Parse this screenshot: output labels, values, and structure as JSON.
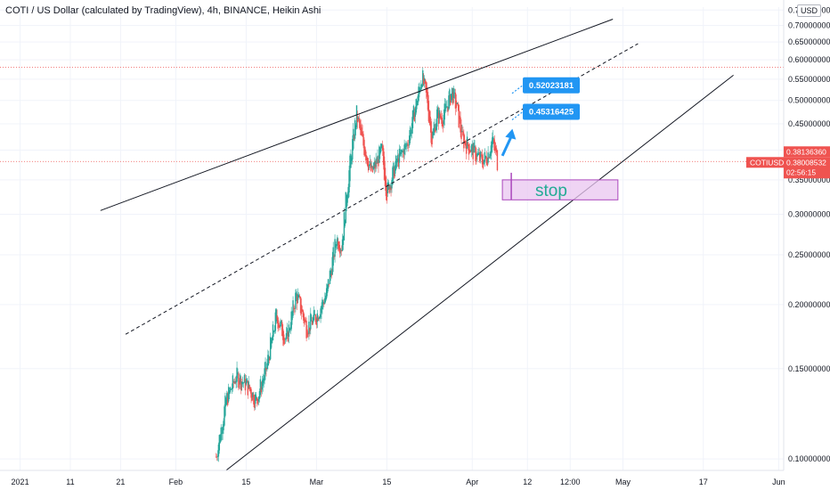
{
  "header": {
    "title": "COTI / US Dollar (calculated by TradingView), 4h, BINANCE, Heikin Ashi",
    "currency_button": "USD"
  },
  "colors": {
    "up": "#26a69a",
    "down": "#ef5350",
    "price_line": "#ef5350",
    "horizontal_level": "#ef5350",
    "grid": "#f0f3fa",
    "trendline": "#131722",
    "callout": "#2196f3",
    "stop_box_fill": "#e9c6f0",
    "stop_box_border": "#ab47bc",
    "stop_text": "#22ab94"
  },
  "chart_data": {
    "type": "candlestick",
    "title": "COTI / US Dollar (calculated by TradingView), 4h, BINANCE, Heikin Ashi",
    "xlabel": "",
    "ylabel": "",
    "y_scale": "log",
    "ylim": [
      0.095,
      0.76
    ],
    "y_ticks": [
      0.1,
      0.15,
      0.2,
      0.25,
      0.3,
      0.35,
      0.4,
      0.45,
      0.5,
      0.55,
      0.6,
      0.65,
      0.7,
      0.75
    ],
    "y_tick_labels": [
      "0.10000000",
      "0.15000000",
      "0.20000000",
      "0.25000000",
      "0.30000000",
      "0.35000000",
      "0.40000000",
      "0.45000000",
      "0.50000000",
      "0.55000000",
      "0.60000000",
      "0.65000000",
      "0.70000000",
      "0.75000000"
    ],
    "x_range": [
      "2020-12-28",
      "2021-06-02"
    ],
    "x_ticks": [
      {
        "date": "2021-01-01",
        "label": "2021"
      },
      {
        "date": "2021-01-11",
        "label": "11"
      },
      {
        "date": "2021-01-21",
        "label": "21"
      },
      {
        "date": "2021-02-01",
        "label": "Feb"
      },
      {
        "date": "2021-02-15",
        "label": "15"
      },
      {
        "date": "2021-03-01",
        "label": "Mar"
      },
      {
        "date": "2021-03-15",
        "label": "15"
      },
      {
        "date": "2021-04-01",
        "label": "Apr"
      },
      {
        "date": "2021-04-12",
        "label": "12"
      },
      {
        "date": "2021-04-20 12:00",
        "label": "12:00"
      },
      {
        "date": "2021-05-01",
        "label": "May"
      },
      {
        "date": "2021-05-17",
        "label": "17"
      },
      {
        "date": "2021-06-01",
        "label": "Jun"
      }
    ],
    "price_path": [
      [
        "2021-02-09",
        0.101
      ],
      [
        "2021-02-11",
        0.13
      ],
      [
        "2021-02-13",
        0.145
      ],
      [
        "2021-02-15",
        0.14
      ],
      [
        "2021-02-17",
        0.13
      ],
      [
        "2021-02-19",
        0.15
      ],
      [
        "2021-02-21",
        0.19
      ],
      [
        "2021-02-23",
        0.17
      ],
      [
        "2021-02-25",
        0.21
      ],
      [
        "2021-02-27",
        0.18
      ],
      [
        "2021-03-01",
        0.19
      ],
      [
        "2021-03-03",
        0.21
      ],
      [
        "2021-03-05",
        0.27
      ],
      [
        "2021-03-06",
        0.26
      ],
      [
        "2021-03-07",
        0.33
      ],
      [
        "2021-03-08",
        0.4
      ],
      [
        "2021-03-09",
        0.47
      ],
      [
        "2021-03-10",
        0.42
      ],
      [
        "2021-03-12",
        0.36
      ],
      [
        "2021-03-14",
        0.4
      ],
      [
        "2021-03-15",
        0.33
      ],
      [
        "2021-03-17",
        0.38
      ],
      [
        "2021-03-19",
        0.41
      ],
      [
        "2021-03-21",
        0.5
      ],
      [
        "2021-03-22",
        0.56
      ],
      [
        "2021-03-23",
        0.5
      ],
      [
        "2021-03-24",
        0.42
      ],
      [
        "2021-03-25",
        0.47
      ],
      [
        "2021-03-26",
        0.46
      ],
      [
        "2021-03-28",
        0.52
      ],
      [
        "2021-03-29",
        0.48
      ],
      [
        "2021-03-30",
        0.42
      ],
      [
        "2021-04-01",
        0.4
      ],
      [
        "2021-04-03",
        0.38
      ],
      [
        "2021-04-04",
        0.39
      ],
      [
        "2021-04-05",
        0.42
      ],
      [
        "2021-04-06",
        0.38
      ]
    ],
    "channel_lines": [
      {
        "style": "solid",
        "from": [
          "2021-01-17",
          0.305
        ],
        "to": [
          "2021-04-29",
          0.72
        ]
      },
      {
        "style": "dashed",
        "from": [
          "2021-01-22",
          0.175
        ],
        "to": [
          "2021-05-04",
          0.645
        ]
      },
      {
        "style": "solid",
        "from": [
          "2021-02-11",
          0.095
        ],
        "to": [
          "2021-05-23",
          0.56
        ]
      }
    ],
    "horizontal_levels": [
      0.58
    ],
    "current_price": 0.38008532,
    "annotations": [
      {
        "type": "callout",
        "text": "0.52023181",
        "at": [
          "2021-04-10",
          0.535
        ]
      },
      {
        "type": "callout",
        "text": "0.45316425",
        "at": [
          "2021-04-10",
          0.475
        ]
      },
      {
        "type": "arrow",
        "from": [
          "2021-04-07",
          0.39
        ],
        "to": [
          "2021-04-09",
          0.44
        ]
      },
      {
        "type": "box",
        "text": "stop",
        "from": [
          "2021-04-07",
          0.35
        ],
        "to": [
          "2021-04-30",
          0.32
        ]
      }
    ]
  },
  "price_scale": {
    "tag_1": "0.38136360",
    "symbol_tag": "COTIUSD",
    "price_tag": "0.38008532",
    "countdown": "02:56:15"
  }
}
